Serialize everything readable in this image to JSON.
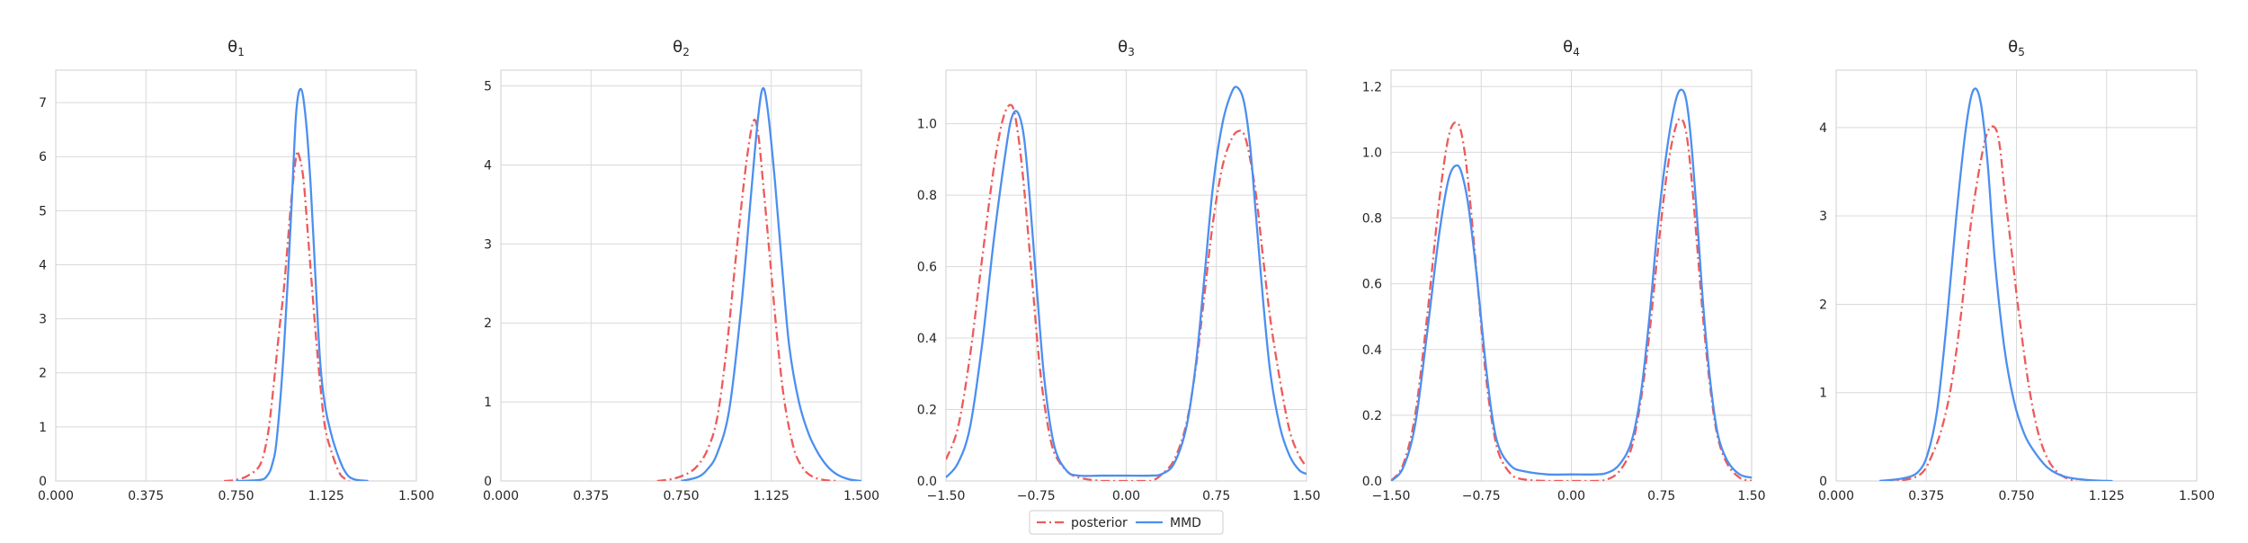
{
  "chart_data": [
    {
      "type": "line",
      "title": "θ1",
      "title_sub": "1",
      "xlim": [
        0,
        1.5
      ],
      "ylim": [
        0,
        7.6
      ],
      "xticks": [
        "0.000",
        "0.375",
        "0.750",
        "1.125",
        "1.500"
      ],
      "xtick_values": [
        0,
        0.375,
        0.75,
        1.125,
        1.5
      ],
      "yticks": [
        "0",
        "1",
        "2",
        "3",
        "4",
        "5",
        "6",
        "7"
      ],
      "ytick_values": [
        0,
        1,
        2,
        3,
        4,
        5,
        6,
        7
      ],
      "grid": true,
      "series": [
        {
          "name": "posterior",
          "color": "#ee5a5a",
          "style": "dashdot",
          "x": [
            0.7,
            0.75,
            0.8,
            0.85,
            0.88,
            0.9,
            0.93,
            0.95,
            0.98,
            1.0,
            1.01,
            1.03,
            1.05,
            1.08,
            1.1,
            1.12,
            1.15,
            1.18,
            1.2,
            1.22
          ],
          "y": [
            0.0,
            0.02,
            0.1,
            0.3,
            0.8,
            1.5,
            2.8,
            3.6,
            5.2,
            6.0,
            6.05,
            5.6,
            4.5,
            2.8,
            1.8,
            1.0,
            0.5,
            0.15,
            0.05,
            0.0
          ]
        },
        {
          "name": "MMD",
          "color": "#4c8ff0",
          "style": "solid",
          "x": [
            0.75,
            0.85,
            0.88,
            0.9,
            0.92,
            0.95,
            0.98,
            1.0,
            1.02,
            1.04,
            1.06,
            1.08,
            1.1,
            1.12,
            1.15,
            1.18,
            1.2,
            1.22,
            1.25,
            1.3
          ],
          "y": [
            0.0,
            0.02,
            0.1,
            0.3,
            0.8,
            2.5,
            5.0,
            6.8,
            7.25,
            6.7,
            5.5,
            3.8,
            2.2,
            1.4,
            0.8,
            0.4,
            0.2,
            0.08,
            0.02,
            0.0
          ]
        }
      ]
    },
    {
      "type": "line",
      "title": "θ2",
      "title_sub": "2",
      "xlim": [
        0,
        1.5
      ],
      "ylim": [
        0,
        5.2
      ],
      "xticks": [
        "0.000",
        "0.375",
        "0.750",
        "1.125",
        "1.500"
      ],
      "xtick_values": [
        0,
        0.375,
        0.75,
        1.125,
        1.5
      ],
      "yticks": [
        "0",
        "1",
        "2",
        "3",
        "4",
        "5"
      ],
      "ytick_values": [
        0,
        1,
        2,
        3,
        4,
        5
      ],
      "grid": true,
      "series": [
        {
          "name": "posterior",
          "color": "#ee5a5a",
          "style": "dashdot",
          "x": [
            0.65,
            0.72,
            0.78,
            0.82,
            0.86,
            0.9,
            0.94,
            0.98,
            1.02,
            1.05,
            1.07,
            1.09,
            1.12,
            1.15,
            1.18,
            1.22,
            1.26,
            1.3,
            1.35,
            1.4
          ],
          "y": [
            0.0,
            0.03,
            0.1,
            0.2,
            0.4,
            0.8,
            1.7,
            2.9,
            4.0,
            4.55,
            4.4,
            3.8,
            2.8,
            1.8,
            1.0,
            0.4,
            0.15,
            0.05,
            0.01,
            0.0
          ]
        },
        {
          "name": "MMD",
          "color": "#4c8ff0",
          "style": "solid",
          "x": [
            0.75,
            0.82,
            0.86,
            0.9,
            0.95,
            1.0,
            1.04,
            1.07,
            1.09,
            1.11,
            1.14,
            1.17,
            1.2,
            1.24,
            1.28,
            1.32,
            1.36,
            1.4,
            1.45,
            1.5
          ],
          "y": [
            0.0,
            0.05,
            0.15,
            0.35,
            0.9,
            2.2,
            3.6,
            4.6,
            4.97,
            4.7,
            3.8,
            2.7,
            1.7,
            1.0,
            0.6,
            0.35,
            0.18,
            0.08,
            0.02,
            0.0
          ]
        }
      ]
    },
    {
      "type": "line",
      "title": "θ3",
      "title_sub": "3",
      "xlim": [
        -1.5,
        1.5
      ],
      "ylim": [
        0,
        1.15
      ],
      "xticks": [
        "−1.50",
        "−0.75",
        "0.00",
        "0.75",
        "1.50"
      ],
      "xtick_values": [
        -1.5,
        -0.75,
        0,
        0.75,
        1.5
      ],
      "yticks": [
        "0.0",
        "0.2",
        "0.4",
        "0.6",
        "0.8",
        "1.0"
      ],
      "ytick_values": [
        0,
        0.2,
        0.4,
        0.6,
        0.8,
        1.0
      ],
      "grid": true,
      "series": [
        {
          "name": "posterior",
          "color": "#ee5a5a",
          "style": "dashdot",
          "x": [
            -1.5,
            -1.4,
            -1.3,
            -1.2,
            -1.1,
            -1.02,
            -0.95,
            -0.9,
            -0.85,
            -0.78,
            -0.72,
            -0.66,
            -0.6,
            -0.5,
            -0.4,
            -0.2,
            0.0,
            0.2,
            0.3,
            0.4,
            0.5,
            0.58,
            0.65,
            0.72,
            0.8,
            0.88,
            0.94,
            0.98,
            1.02,
            1.08,
            1.14,
            1.2,
            1.28,
            1.36,
            1.44,
            1.5
          ],
          "y": [
            0.06,
            0.15,
            0.35,
            0.62,
            0.88,
            1.02,
            1.05,
            0.97,
            0.82,
            0.55,
            0.32,
            0.17,
            0.08,
            0.03,
            0.01,
            0.0,
            0.0,
            0.0,
            0.02,
            0.06,
            0.16,
            0.32,
            0.52,
            0.72,
            0.88,
            0.96,
            0.98,
            0.97,
            0.92,
            0.8,
            0.62,
            0.45,
            0.28,
            0.14,
            0.07,
            0.04
          ]
        },
        {
          "name": "MMD",
          "color": "#4c8ff0",
          "style": "solid",
          "x": [
            -1.5,
            -1.4,
            -1.3,
            -1.2,
            -1.1,
            -1.0,
            -0.95,
            -0.9,
            -0.85,
            -0.8,
            -0.74,
            -0.68,
            -0.6,
            -0.5,
            -0.4,
            -0.2,
            0.0,
            0.2,
            0.3,
            0.4,
            0.5,
            0.58,
            0.65,
            0.72,
            0.8,
            0.88,
            0.93,
            0.98,
            1.03,
            1.08,
            1.14,
            1.2,
            1.28,
            1.36,
            1.44,
            1.5
          ],
          "y": [
            0.01,
            0.05,
            0.15,
            0.38,
            0.68,
            0.93,
            1.02,
            1.03,
            0.96,
            0.78,
            0.52,
            0.28,
            0.1,
            0.03,
            0.015,
            0.015,
            0.015,
            0.015,
            0.02,
            0.05,
            0.15,
            0.33,
            0.57,
            0.82,
            1.0,
            1.09,
            1.1,
            1.06,
            0.94,
            0.74,
            0.5,
            0.3,
            0.15,
            0.07,
            0.03,
            0.02
          ]
        }
      ]
    },
    {
      "type": "line",
      "title": "θ4",
      "title_sub": "4",
      "xlim": [
        -1.5,
        1.5
      ],
      "ylim": [
        0,
        1.25
      ],
      "xticks": [
        "−1.50",
        "−0.75",
        "0.00",
        "0.75",
        "1.50"
      ],
      "xtick_values": [
        -1.5,
        -0.75,
        0,
        0.75,
        1.5
      ],
      "yticks": [
        "0.0",
        "0.2",
        "0.4",
        "0.6",
        "0.8",
        "1.0",
        "1.2"
      ],
      "ytick_values": [
        0,
        0.2,
        0.4,
        0.6,
        0.8,
        1.0,
        1.2
      ],
      "grid": true,
      "series": [
        {
          "name": "posterior",
          "color": "#ee5a5a",
          "style": "dashdot",
          "x": [
            -1.5,
            -1.4,
            -1.3,
            -1.2,
            -1.1,
            -1.02,
            -0.95,
            -0.9,
            -0.85,
            -0.78,
            -0.72,
            -0.66,
            -0.6,
            -0.5,
            -0.4,
            -0.2,
            0.0,
            0.2,
            0.3,
            0.4,
            0.5,
            0.58,
            0.65,
            0.72,
            0.8,
            0.87,
            0.92,
            0.96,
            1.0,
            1.05,
            1.1,
            1.16,
            1.22,
            1.3,
            1.4,
            1.5
          ],
          "y": [
            0.0,
            0.05,
            0.2,
            0.5,
            0.85,
            1.05,
            1.09,
            1.03,
            0.88,
            0.6,
            0.35,
            0.18,
            0.08,
            0.02,
            0.005,
            0.0,
            0.0,
            0.0,
            0.005,
            0.03,
            0.1,
            0.25,
            0.45,
            0.7,
            0.95,
            1.08,
            1.1,
            1.05,
            0.92,
            0.7,
            0.48,
            0.27,
            0.13,
            0.05,
            0.01,
            0.0
          ]
        },
        {
          "name": "MMD",
          "color": "#4c8ff0",
          "style": "solid",
          "x": [
            -1.5,
            -1.4,
            -1.3,
            -1.2,
            -1.1,
            -1.02,
            -0.95,
            -0.9,
            -0.85,
            -0.78,
            -0.72,
            -0.66,
            -0.6,
            -0.5,
            -0.4,
            -0.2,
            0.0,
            0.2,
            0.3,
            0.4,
            0.5,
            0.58,
            0.65,
            0.72,
            0.8,
            0.87,
            0.92,
            0.96,
            1.0,
            1.05,
            1.1,
            1.16,
            1.22,
            1.3,
            1.4,
            1.5
          ],
          "y": [
            0.0,
            0.04,
            0.17,
            0.45,
            0.75,
            0.92,
            0.96,
            0.92,
            0.82,
            0.6,
            0.38,
            0.2,
            0.1,
            0.045,
            0.03,
            0.02,
            0.02,
            0.02,
            0.025,
            0.05,
            0.12,
            0.27,
            0.5,
            0.78,
            1.02,
            1.16,
            1.19,
            1.15,
            1.02,
            0.78,
            0.52,
            0.29,
            0.14,
            0.06,
            0.02,
            0.01
          ]
        }
      ]
    },
    {
      "type": "line",
      "title": "θ5",
      "title_sub": "5",
      "xlim": [
        0,
        1.5
      ],
      "ylim": [
        0,
        4.65
      ],
      "xticks": [
        "0.000",
        "0.375",
        "0.750",
        "1.125",
        "1.500"
      ],
      "xtick_values": [
        0,
        0.375,
        0.75,
        1.125,
        1.5
      ],
      "yticks": [
        "0",
        "1",
        "2",
        "3",
        "4"
      ],
      "ytick_values": [
        0,
        1,
        2,
        3,
        4
      ],
      "grid": true,
      "series": [
        {
          "name": "posterior",
          "color": "#ee5a5a",
          "style": "dashdot",
          "x": [
            0.2,
            0.3,
            0.36,
            0.4,
            0.44,
            0.48,
            0.52,
            0.56,
            0.6,
            0.63,
            0.66,
            0.68,
            0.7,
            0.73,
            0.76,
            0.8,
            0.84,
            0.88,
            0.92,
            0.96,
            1.0
          ],
          "y": [
            0.0,
            0.02,
            0.1,
            0.3,
            0.6,
            1.1,
            1.9,
            2.9,
            3.6,
            3.95,
            4.0,
            3.8,
            3.3,
            2.6,
            1.9,
            1.1,
            0.55,
            0.25,
            0.1,
            0.03,
            0.0
          ]
        },
        {
          "name": "MMD",
          "color": "#4c8ff0",
          "style": "solid",
          "x": [
            0.18,
            0.28,
            0.34,
            0.38,
            0.42,
            0.46,
            0.5,
            0.54,
            0.57,
            0.6,
            0.63,
            0.66,
            0.7,
            0.74,
            0.78,
            0.82,
            0.88,
            0.95,
            1.05,
            1.15
          ],
          "y": [
            0.0,
            0.03,
            0.1,
            0.3,
            0.8,
            1.8,
            3.0,
            4.0,
            4.42,
            4.3,
            3.6,
            2.5,
            1.5,
            0.9,
            0.55,
            0.35,
            0.15,
            0.05,
            0.01,
            0.0
          ]
        }
      ]
    }
  ],
  "legend": {
    "placement": "bottom-center",
    "entries": [
      {
        "label": "posterior",
        "color": "#ee5a5a",
        "style": "dashdot"
      },
      {
        "label": "MMD",
        "color": "#4c8ff0",
        "style": "solid"
      }
    ]
  }
}
